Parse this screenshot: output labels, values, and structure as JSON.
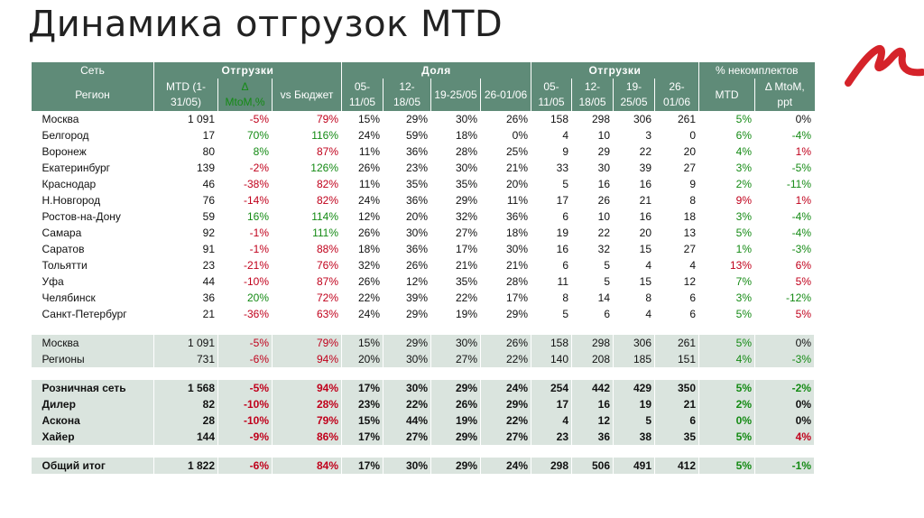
{
  "title": "Динамика отгрузок MTD",
  "brand_color": "#d5232a",
  "header": {
    "set_label": "Сеть",
    "region_label": "Регион",
    "groups": {
      "shipments": "Отгрузки",
      "share": "Доля",
      "shipments2": "Отгрузки",
      "incomplete": "% некомплектов"
    },
    "cols": {
      "mtd": "MTD (1-31/05)",
      "delta": "Δ MtoM,%",
      "vs_budget": "vs Бюджет",
      "w1": "05-11/05",
      "w2": "12-18/05",
      "w3": "19-25/05",
      "w4": "26-01/06",
      "w5": "05-11/05",
      "w6": "12-18/05",
      "w7": "19-25/05",
      "w8": "26-01/06",
      "inc_mtd": "MTD",
      "inc_delta": "Δ MtoM, ppt"
    }
  },
  "regions": [
    {
      "name": "Москва",
      "mtd": "1 091",
      "delta": "-5%",
      "budget": "79%",
      "s1": "15%",
      "s2": "29%",
      "s3": "30%",
      "s4": "26%",
      "q1": "158",
      "q2": "298",
      "q3": "306",
      "q4": "261",
      "inc": "5%",
      "incd": "0%"
    },
    {
      "name": "Белгород",
      "mtd": "17",
      "delta": "70%",
      "budget": "116%",
      "s1": "24%",
      "s2": "59%",
      "s3": "18%",
      "s4": "0%",
      "q1": "4",
      "q2": "10",
      "q3": "3",
      "q4": "0",
      "inc": "6%",
      "incd": "-4%"
    },
    {
      "name": "Воронеж",
      "mtd": "80",
      "delta": "8%",
      "budget": "87%",
      "s1": "11%",
      "s2": "36%",
      "s3": "28%",
      "s4": "25%",
      "q1": "9",
      "q2": "29",
      "q3": "22",
      "q4": "20",
      "inc": "4%",
      "incd": "1%"
    },
    {
      "name": "Екатеринбург",
      "mtd": "139",
      "delta": "-2%",
      "budget": "126%",
      "s1": "26%",
      "s2": "23%",
      "s3": "30%",
      "s4": "21%",
      "q1": "33",
      "q2": "30",
      "q3": "39",
      "q4": "27",
      "inc": "3%",
      "incd": "-5%"
    },
    {
      "name": "Краснодар",
      "mtd": "46",
      "delta": "-38%",
      "budget": "82%",
      "s1": "11%",
      "s2": "35%",
      "s3": "35%",
      "s4": "20%",
      "q1": "5",
      "q2": "16",
      "q3": "16",
      "q4": "9",
      "inc": "2%",
      "incd": "-11%"
    },
    {
      "name": "Н.Новгород",
      "mtd": "76",
      "delta": "-14%",
      "budget": "82%",
      "s1": "24%",
      "s2": "36%",
      "s3": "29%",
      "s4": "11%",
      "q1": "17",
      "q2": "26",
      "q3": "21",
      "q4": "8",
      "inc": "9%",
      "incd": "1%"
    },
    {
      "name": "Ростов-на-Дону",
      "mtd": "59",
      "delta": "16%",
      "budget": "114%",
      "s1": "12%",
      "s2": "20%",
      "s3": "32%",
      "s4": "36%",
      "q1": "6",
      "q2": "10",
      "q3": "16",
      "q4": "18",
      "inc": "3%",
      "incd": "-4%"
    },
    {
      "name": "Самара",
      "mtd": "92",
      "delta": "-1%",
      "budget": "111%",
      "s1": "26%",
      "s2": "30%",
      "s3": "27%",
      "s4": "18%",
      "q1": "19",
      "q2": "22",
      "q3": "20",
      "q4": "13",
      "inc": "5%",
      "incd": "-4%"
    },
    {
      "name": "Саратов",
      "mtd": "91",
      "delta": "-1%",
      "budget": "88%",
      "s1": "18%",
      "s2": "36%",
      "s3": "17%",
      "s4": "30%",
      "q1": "16",
      "q2": "32",
      "q3": "15",
      "q4": "27",
      "inc": "1%",
      "incd": "-3%"
    },
    {
      "name": "Тольятти",
      "mtd": "23",
      "delta": "-21%",
      "budget": "76%",
      "s1": "32%",
      "s2": "26%",
      "s3": "21%",
      "s4": "21%",
      "q1": "6",
      "q2": "5",
      "q3": "4",
      "q4": "4",
      "inc": "13%",
      "incd": "6%"
    },
    {
      "name": "Уфа",
      "mtd": "44",
      "delta": "-10%",
      "budget": "87%",
      "s1": "26%",
      "s2": "12%",
      "s3": "35%",
      "s4": "28%",
      "q1": "11",
      "q2": "5",
      "q3": "15",
      "q4": "12",
      "inc": "7%",
      "incd": "5%"
    },
    {
      "name": "Челябинск",
      "mtd": "36",
      "delta": "20%",
      "budget": "72%",
      "s1": "22%",
      "s2": "39%",
      "s3": "22%",
      "s4": "17%",
      "q1": "8",
      "q2": "14",
      "q3": "8",
      "q4": "6",
      "inc": "3%",
      "incd": "-12%"
    },
    {
      "name": "Санкт-Петербург",
      "mtd": "21",
      "delta": "-36%",
      "budget": "63%",
      "s1": "24%",
      "s2": "29%",
      "s3": "19%",
      "s4": "29%",
      "q1": "5",
      "q2": "6",
      "q3": "4",
      "q4": "6",
      "inc": "5%",
      "incd": "5%"
    }
  ],
  "summary": [
    {
      "name": "Москва",
      "mtd": "1 091",
      "delta": "-5%",
      "budget": "79%",
      "s1": "15%",
      "s2": "29%",
      "s3": "30%",
      "s4": "26%",
      "q1": "158",
      "q2": "298",
      "q3": "306",
      "q4": "261",
      "inc": "5%",
      "incd": "0%"
    },
    {
      "name": "Регионы",
      "mtd": "731",
      "delta": "-6%",
      "budget": "94%",
      "s1": "20%",
      "s2": "30%",
      "s3": "27%",
      "s4": "22%",
      "q1": "140",
      "q2": "208",
      "q3": "185",
      "q4": "151",
      "inc": "4%",
      "incd": "-3%"
    }
  ],
  "channels": [
    {
      "name": "Розничная сеть",
      "mtd": "1 568",
      "delta": "-5%",
      "budget": "94%",
      "s1": "17%",
      "s2": "30%",
      "s3": "29%",
      "s4": "24%",
      "q1": "254",
      "q2": "442",
      "q3": "429",
      "q4": "350",
      "inc": "5%",
      "incd": "-2%"
    },
    {
      "name": "Дилер",
      "mtd": "82",
      "delta": "-10%",
      "budget": "28%",
      "s1": "23%",
      "s2": "22%",
      "s3": "26%",
      "s4": "29%",
      "q1": "17",
      "q2": "16",
      "q3": "19",
      "q4": "21",
      "inc": "2%",
      "incd": "0%"
    },
    {
      "name": "Аскона",
      "mtd": "28",
      "delta": "-10%",
      "budget": "79%",
      "s1": "15%",
      "s2": "44%",
      "s3": "19%",
      "s4": "22%",
      "q1": "4",
      "q2": "12",
      "q3": "5",
      "q4": "6",
      "inc": "0%",
      "incd": "0%"
    },
    {
      "name": "Хайер",
      "mtd": "144",
      "delta": "-9%",
      "budget": "86%",
      "s1": "17%",
      "s2": "27%",
      "s3": "29%",
      "s4": "27%",
      "q1": "23",
      "q2": "36",
      "q3": "38",
      "q4": "35",
      "inc": "5%",
      "incd": "4%"
    }
  ],
  "total": {
    "name": "Общий итог",
    "mtd": "1 822",
    "delta": "-6%",
    "budget": "84%",
    "s1": "17%",
    "s2": "30%",
    "s3": "29%",
    "s4": "24%",
    "q1": "298",
    "q2": "506",
    "q3": "491",
    "q4": "412",
    "inc": "5%",
    "incd": "-1%"
  }
}
